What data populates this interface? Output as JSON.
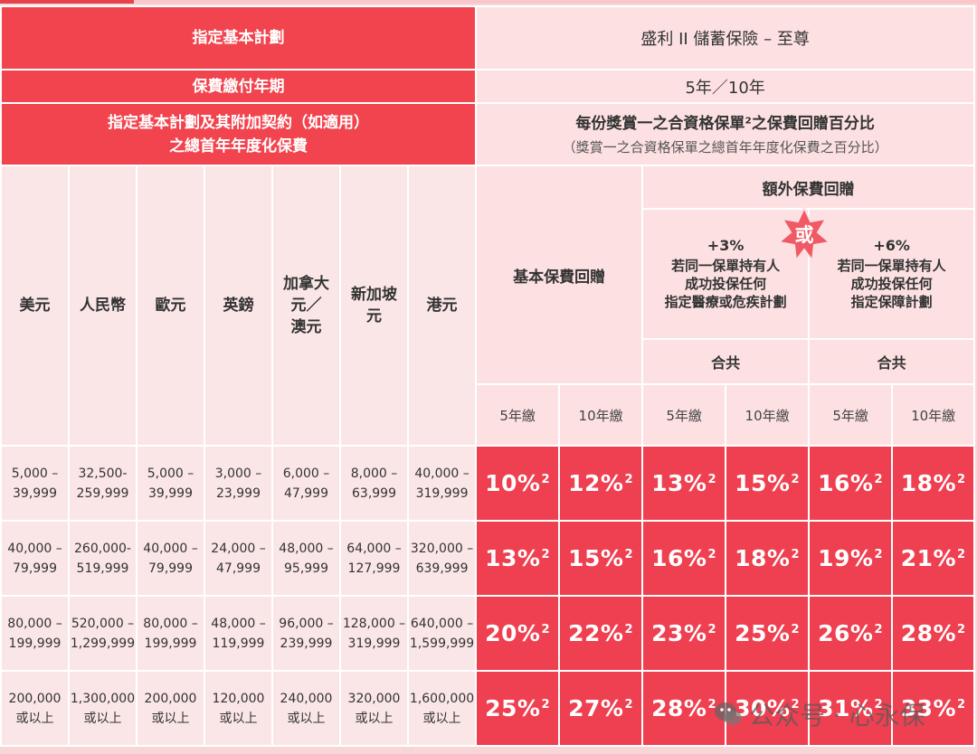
{
  "header": {
    "plan_label": "指定基本計劃",
    "plan_value": "盛利 II 儲蓄保險 – 至尊",
    "term_label": "保費繳付年期",
    "term_value": "5年／10年",
    "premium_label_line1": "指定基本計劃及其附加契約（如適用）",
    "premium_label_line2": "之總首年年度化保費",
    "rebate_title": "每份獎賞一之合資格保單²之保費回贈百分比",
    "rebate_subtitle": "（獎賞一之合資格保單之總首年年度化保費之百分比）"
  },
  "currencies": [
    "美元",
    "人民幣",
    "歐元",
    "英鎊",
    "加拿大\n元／\n澳元",
    "新加坡\n元",
    "港元"
  ],
  "rebate_headers": {
    "basic": "基本保費回贈",
    "extra": "額外保費回贈",
    "or_badge": "或",
    "option1_pct": "+3%",
    "option1_desc": "若同一保單持有人\n成功投保任何\n指定醫療或危疾計劃",
    "option2_pct": "+6%",
    "option2_desc": "若同一保單持有人\n成功投保任何\n指定保障計劃",
    "total1": "合共",
    "total2": "合共",
    "pay_terms": [
      "5年繳",
      "10年繳",
      "5年繳",
      "10年繳",
      "5年繳",
      "10年繳"
    ]
  },
  "rows": [
    {
      "ranges": [
        "5,000 –\n39,999",
        "32,500-\n259,999",
        "5,000 –\n39,999",
        "3,000 –\n23,999",
        "6,000 –\n47,999",
        "8,000 –\n63,999",
        "40,000 –\n319,999"
      ],
      "rates": [
        "10%",
        "12%",
        "13%",
        "15%",
        "16%",
        "18%"
      ]
    },
    {
      "ranges": [
        "40,000 –\n79,999",
        "260,000-\n519,999",
        "40,000 –\n79,999",
        "24,000 –\n47,999",
        "48,000 –\n95,999",
        "64,000 –\n127,999",
        "320,000 –\n639,999"
      ],
      "rates": [
        "13%",
        "15%",
        "16%",
        "18%",
        "19%",
        "21%"
      ]
    },
    {
      "ranges": [
        "80,000 –\n199,999",
        "520,000 –\n1,299,999",
        "80,000 –\n199,999",
        "48,000 –\n119,999",
        "96,000 –\n239,999",
        "128,000 –\n319,999",
        "640,000 –\n1,599,999"
      ],
      "rates": [
        "20%",
        "22%",
        "23%",
        "25%",
        "26%",
        "28%"
      ]
    },
    {
      "ranges": [
        "200,000\n或以上",
        "1,300,000\n或以上",
        "200,000\n或以上",
        "120,000\n或以上",
        "240,000\n或以上",
        "320,000\n或以上",
        "1,600,000\n或以上"
      ],
      "rates": [
        "25%",
        "27%",
        "28%",
        "30%",
        "31%",
        "33%"
      ]
    }
  ],
  "footnote_sup": "2",
  "watermark": "公众号 · 心永保",
  "colors": {
    "red": "#f2444e",
    "pink": "#fde1e2",
    "cell": "#fbe6e7",
    "rate": "#ee4050"
  }
}
